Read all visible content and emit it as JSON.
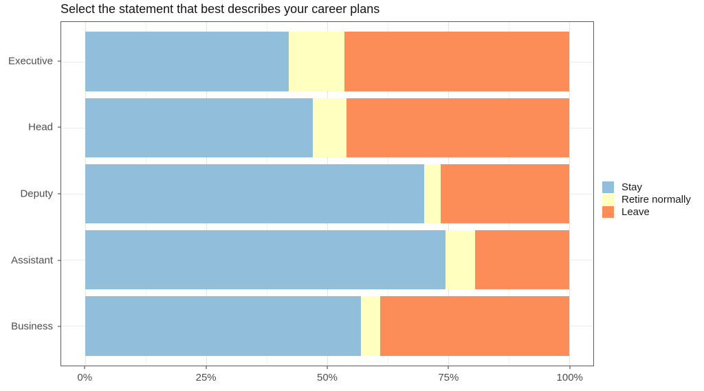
{
  "chart_data": {
    "type": "bar",
    "orientation": "horizontal",
    "stacked": true,
    "unit": "percent",
    "title": "Select the statement that best describes your career plans",
    "categories": [
      "Executive",
      "Head",
      "Deputy",
      "Assistant",
      "Business"
    ],
    "series": [
      {
        "name": "Stay",
        "color": "#91BFDB",
        "values": [
          42,
          47,
          70,
          74.5,
          57
        ]
      },
      {
        "name": "Retire normally",
        "color": "#FFFFBF",
        "values": [
          11.5,
          7,
          3.5,
          6,
          4
        ]
      },
      {
        "name": "Leave",
        "color": "#FC8D59",
        "values": [
          46.5,
          46,
          26.5,
          19.5,
          39
        ]
      }
    ],
    "x_ticks": [
      "0%",
      "25%",
      "50%",
      "75%",
      "100%"
    ],
    "x_tick_values": [
      0,
      25,
      50,
      75,
      100
    ],
    "x_minor_values": [
      12.5,
      37.5,
      62.5,
      87.5
    ],
    "xlim": [
      0,
      100
    ],
    "grid": true,
    "legend_position": "right",
    "legend": [
      "Stay",
      "Retire normally",
      "Leave"
    ]
  }
}
